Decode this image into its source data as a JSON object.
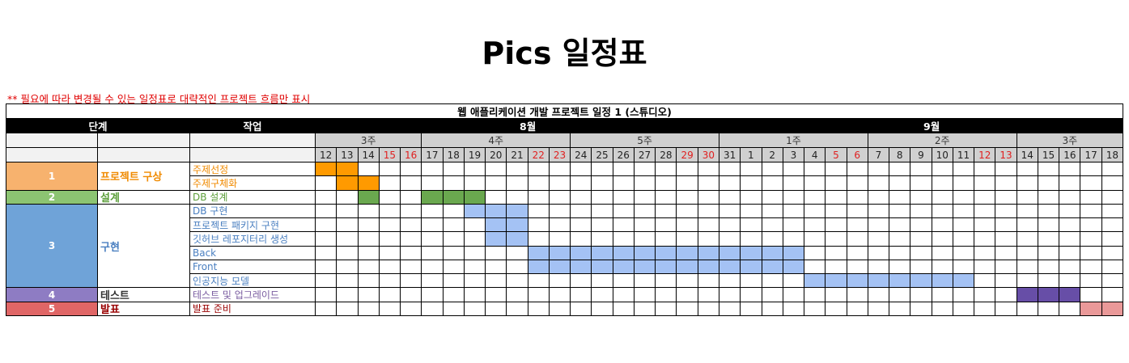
{
  "title": "Pics 일정표",
  "note": "** 필요에 따라 변경될 수 있는 일정표로 대략적인 프로젝트 흐름만 표시",
  "table_title": "웹 애플리케이션 개발 프로젝트 일정 1 (스튜디오)",
  "headers": {
    "stage": "단계",
    "task": "작업"
  },
  "months": [
    {
      "label": "8월",
      "from": 0,
      "to": 19
    },
    {
      "label": "9월",
      "from": 20,
      "to": 37
    }
  ],
  "weeks": [
    {
      "label": "3주",
      "from": 0,
      "to": 4
    },
    {
      "label": "4주",
      "from": 5,
      "to": 11
    },
    {
      "label": "5주",
      "from": 12,
      "to": 18
    },
    {
      "label": "1주",
      "from": 19,
      "to": 25
    },
    {
      "label": "2주",
      "from": 26,
      "to": 32
    },
    {
      "label": "3주",
      "from": 33,
      "to": 37
    }
  ],
  "days": [
    {
      "d": "12",
      "weekend": false
    },
    {
      "d": "13",
      "weekend": false
    },
    {
      "d": "14",
      "weekend": false
    },
    {
      "d": "15",
      "weekend": true
    },
    {
      "d": "16",
      "weekend": true
    },
    {
      "d": "17",
      "weekend": false
    },
    {
      "d": "18",
      "weekend": false
    },
    {
      "d": "19",
      "weekend": false
    },
    {
      "d": "20",
      "weekend": false
    },
    {
      "d": "21",
      "weekend": false
    },
    {
      "d": "22",
      "weekend": true
    },
    {
      "d": "23",
      "weekend": true
    },
    {
      "d": "24",
      "weekend": false
    },
    {
      "d": "25",
      "weekend": false
    },
    {
      "d": "26",
      "weekend": false
    },
    {
      "d": "27",
      "weekend": false
    },
    {
      "d": "28",
      "weekend": false
    },
    {
      "d": "29",
      "weekend": true
    },
    {
      "d": "30",
      "weekend": true
    },
    {
      "d": "31",
      "weekend": false
    },
    {
      "d": "1",
      "weekend": false
    },
    {
      "d": "2",
      "weekend": false
    },
    {
      "d": "3",
      "weekend": false
    },
    {
      "d": "4",
      "weekend": false
    },
    {
      "d": "5",
      "weekend": true
    },
    {
      "d": "6",
      "weekend": true
    },
    {
      "d": "7",
      "weekend": false
    },
    {
      "d": "8",
      "weekend": false
    },
    {
      "d": "9",
      "weekend": false
    },
    {
      "d": "10",
      "weekend": false
    },
    {
      "d": "11",
      "weekend": false
    },
    {
      "d": "12",
      "weekend": true
    },
    {
      "d": "13",
      "weekend": true
    },
    {
      "d": "14",
      "weekend": false
    },
    {
      "d": "15",
      "weekend": false
    },
    {
      "d": "16",
      "weekend": false
    },
    {
      "d": "17",
      "weekend": false
    },
    {
      "d": "18",
      "weekend": false
    }
  ],
  "phases": [
    {
      "num": "1",
      "name": "프로젝트 구상",
      "color": "#f7b26e",
      "text_color": "#f08a00",
      "rows": [
        0,
        1
      ]
    },
    {
      "num": "2",
      "name": "설계",
      "color": "#8cc472",
      "text_color": "#5c9e3a",
      "rows": [
        2
      ]
    },
    {
      "num": "3",
      "name": "구현",
      "color": "#6fa3d8",
      "text_color": "#4a7fc0",
      "rows": [
        3,
        4,
        5,
        6,
        7,
        8
      ]
    },
    {
      "num": "4",
      "name": "테스트",
      "color": "#8e7cc3",
      "text_color": "#333333",
      "rows": [
        9
      ]
    },
    {
      "num": "5",
      "name": "발표",
      "color": "#e06666",
      "text_color": "#990000",
      "rows": [
        10
      ]
    }
  ],
  "tasks": [
    {
      "name": "주제선정",
      "text_color": "#f08a00",
      "bar_color": "#ff9a00",
      "days": [
        0,
        1
      ]
    },
    {
      "name": "주제구체화",
      "text_color": "#f08a00",
      "bar_color": "#ff9a00",
      "days": [
        1,
        2
      ]
    },
    {
      "name": "DB 설계",
      "text_color": "#5c9e3a",
      "bar_color": "#6aa84f",
      "days": [
        2,
        5,
        6,
        7
      ]
    },
    {
      "name": "DB 구현",
      "text_color": "#4a7fc0",
      "bar_color": "#a4c2f4",
      "days": [
        7,
        8,
        9
      ]
    },
    {
      "name": "프로젝트 패키지 구현",
      "text_color": "#4a7fc0",
      "bar_color": "#a4c2f4",
      "days": [
        8,
        9
      ]
    },
    {
      "name": "깃허브 레포지터리 생성",
      "text_color": "#4a7fc0",
      "bar_color": "#a4c2f4",
      "days": [
        8,
        9
      ]
    },
    {
      "name": "Back",
      "text_color": "#4a7fc0",
      "bar_color": "#a4c2f4",
      "days": [
        10,
        11,
        12,
        13,
        14,
        15,
        16,
        17,
        18,
        19,
        20,
        21,
        22
      ]
    },
    {
      "name": "Front",
      "text_color": "#4a7fc0",
      "bar_color": "#a4c2f4",
      "days": [
        10,
        11,
        12,
        13,
        14,
        15,
        16,
        17,
        18,
        19,
        20,
        21,
        22
      ]
    },
    {
      "name": "인공지능 모델",
      "text_color": "#4a7fc0",
      "bar_color": "#a4c2f4",
      "days": [
        23,
        24,
        25,
        26,
        27,
        28,
        29,
        30
      ]
    },
    {
      "name": "테스트 및 업그레이드",
      "text_color": "#7a5ca0",
      "bar_color": "#674ea7",
      "days": [
        33,
        34,
        35
      ]
    },
    {
      "name": "발표 준비",
      "text_color": "#990000",
      "bar_color": "#ea9999",
      "days": [
        36,
        37
      ]
    }
  ]
}
